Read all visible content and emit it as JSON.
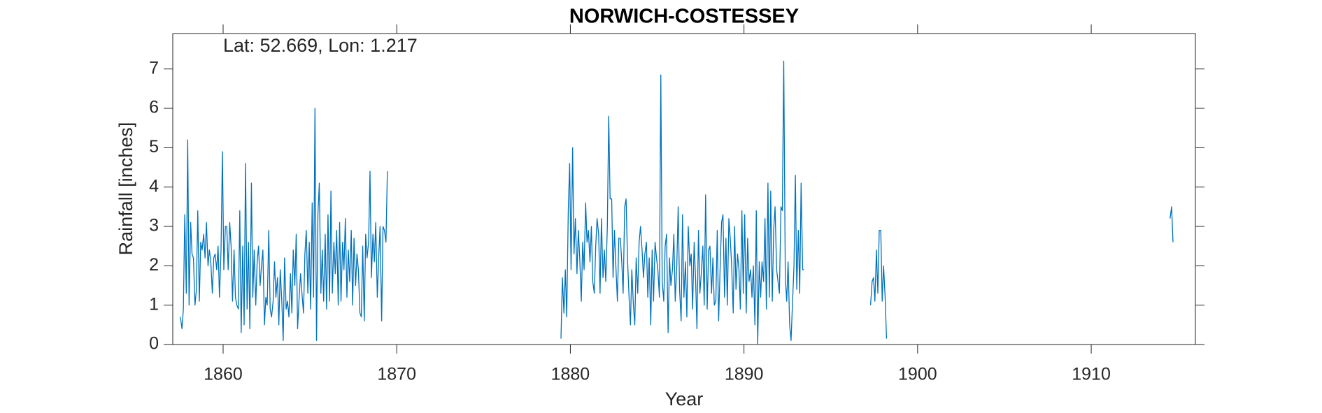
{
  "chart_data": {
    "type": "line",
    "title": "NORWICH-COSTESSEY",
    "annotation": "Lat: 52.669, Lon: 1.217",
    "x_label": "Year",
    "y_label": "Rainfall [inches]",
    "xlim": [
      1857.1,
      1916
    ],
    "xticks": [
      1860,
      1870,
      1880,
      1890,
      1900,
      1910
    ],
    "ylim": [
      0,
      7.9
    ],
    "yticks": [
      0,
      1,
      2,
      3,
      4,
      5,
      6,
      7
    ],
    "color": "#0072bd",
    "x": [
      1857.54,
      1857.63,
      1857.71,
      1857.79,
      1857.88,
      1857.96,
      1858.04,
      1858.13,
      1858.21,
      1858.29,
      1858.38,
      1858.46,
      1858.54,
      1858.63,
      1858.71,
      1858.79,
      1858.88,
      1858.96,
      1859.04,
      1859.13,
      1859.21,
      1859.29,
      1859.38,
      1859.46,
      1859.54,
      1859.63,
      1859.71,
      1859.79,
      1859.88,
      1859.96,
      1860.04,
      1860.13,
      1860.21,
      1860.29,
      1860.38,
      1860.46,
      1860.54,
      1860.63,
      1860.71,
      1860.79,
      1860.88,
      1860.96,
      1861.04,
      1861.13,
      1861.21,
      1861.29,
      1861.38,
      1861.46,
      1861.54,
      1861.63,
      1861.71,
      1861.79,
      1861.88,
      1861.96,
      1862.04,
      1862.13,
      1862.21,
      1862.29,
      1862.38,
      1862.46,
      1862.54,
      1862.63,
      1862.71,
      1862.79,
      1862.88,
      1862.96,
      1863.04,
      1863.13,
      1863.21,
      1863.29,
      1863.38,
      1863.46,
      1863.54,
      1863.63,
      1863.71,
      1863.79,
      1863.88,
      1863.96,
      1864.04,
      1864.13,
      1864.21,
      1864.29,
      1864.38,
      1864.46,
      1864.54,
      1864.63,
      1864.71,
      1864.79,
      1864.88,
      1864.96,
      1865.04,
      1865.13,
      1865.21,
      1865.29,
      1865.38,
      1865.46,
      1865.54,
      1865.63,
      1865.71,
      1865.79,
      1865.88,
      1865.96,
      1866.04,
      1866.13,
      1866.21,
      1866.29,
      1866.38,
      1866.46,
      1866.54,
      1866.63,
      1866.71,
      1866.79,
      1866.88,
      1866.96,
      1867.04,
      1867.13,
      1867.21,
      1867.29,
      1867.38,
      1867.46,
      1867.54,
      1867.63,
      1867.71,
      1867.79,
      1867.88,
      1867.96,
      1868.04,
      1868.13,
      1868.21,
      1868.29,
      1868.38,
      1868.46,
      1868.54,
      1868.63,
      1868.71,
      1868.79,
      1868.88,
      1868.96,
      1869.04,
      1869.13,
      1869.21,
      1869.29,
      1869.38,
      1869.46,
      null,
      1879.46,
      1879.54,
      1879.63,
      1879.71,
      1879.79,
      1879.88,
      1879.96,
      1880.04,
      1880.13,
      1880.21,
      1880.29,
      1880.38,
      1880.46,
      1880.54,
      1880.63,
      1880.71,
      1880.79,
      1880.88,
      1880.96,
      1881.04,
      1881.13,
      1881.21,
      1881.29,
      1881.38,
      1881.46,
      1881.54,
      1881.63,
      1881.71,
      1881.79,
      1881.88,
      1881.96,
      1882.04,
      1882.13,
      1882.21,
      1882.29,
      1882.38,
      1882.46,
      1882.54,
      1882.63,
      1882.71,
      1882.79,
      1882.88,
      1882.96,
      1883.04,
      1883.13,
      1883.21,
      1883.29,
      1883.38,
      1883.46,
      1883.54,
      1883.63,
      1883.71,
      1883.79,
      1883.88,
      1883.96,
      1884.04,
      1884.13,
      1884.21,
      1884.29,
      1884.38,
      1884.46,
      1884.54,
      1884.63,
      1884.71,
      1884.79,
      1884.88,
      1884.96,
      1885.04,
      1885.13,
      1885.21,
      1885.29,
      1885.38,
      1885.46,
      1885.54,
      1885.63,
      1885.71,
      1885.79,
      1885.88,
      1885.96,
      1886.04,
      1886.13,
      1886.21,
      1886.29,
      1886.38,
      1886.46,
      1886.54,
      1886.63,
      1886.71,
      1886.79,
      1886.88,
      1886.96,
      1887.04,
      1887.13,
      1887.21,
      1887.29,
      1887.38,
      1887.46,
      1887.54,
      1887.63,
      1887.71,
      1887.79,
      1887.88,
      1887.96,
      1888.04,
      1888.13,
      1888.21,
      1888.29,
      1888.38,
      1888.46,
      1888.54,
      1888.63,
      1888.71,
      1888.79,
      1888.88,
      1888.96,
      1889.04,
      1889.13,
      1889.21,
      1889.29,
      1889.38,
      1889.46,
      1889.54,
      1889.63,
      1889.71,
      1889.79,
      1889.88,
      1889.96,
      1890.04,
      1890.13,
      1890.21,
      1890.29,
      1890.38,
      1890.46,
      1890.54,
      1890.63,
      1890.71,
      1890.79,
      1890.88,
      1890.96,
      1891.04,
      1891.13,
      1891.21,
      1891.29,
      1891.38,
      1891.46,
      1891.54,
      1891.63,
      1891.71,
      1891.79,
      1891.88,
      1891.96,
      1892.04,
      1892.13,
      1892.21,
      1892.29,
      1892.38,
      1892.46,
      1892.54,
      1892.63,
      1892.71,
      1892.79,
      1892.88,
      1892.96,
      1893.04,
      1893.13,
      1893.21,
      1893.29,
      1893.38,
      1893.46,
      null,
      1897.29,
      1897.38,
      1897.46,
      1897.54,
      1897.63,
      1897.71,
      1897.79,
      1897.88,
      1897.96,
      1898.04,
      1898.13,
      1898.21,
      null,
      1914.54,
      1914.63,
      1914.71
    ],
    "values": [
      0.7,
      0.4,
      0.9,
      3.3,
      1.3,
      5.2,
      1.0,
      3.1,
      2.3,
      2.2,
      1.0,
      1.4,
      3.4,
      1.1,
      2.6,
      2.4,
      2.8,
      2.2,
      3.1,
      2.0,
      2.4,
      2.1,
      1.3,
      2.2,
      2.3,
      1.9,
      2.5,
      1.2,
      2.4,
      4.9,
      1.9,
      3.0,
      3.0,
      1.9,
      3.1,
      2.5,
      1.1,
      2.4,
      1.2,
      1.0,
      0.9,
      3.4,
      0.3,
      2.5,
      0.5,
      4.6,
      0.9,
      2.6,
      0.4,
      4.1,
      1.2,
      2.4,
      1.0,
      2.1,
      2.5,
      1.5,
      2.0,
      2.4,
      0.5,
      1.2,
      1.0,
      2.9,
      0.9,
      0.7,
      1.1,
      2.1,
      1.2,
      1.7,
      0.5,
      1.9,
      1.1,
      0.1,
      2.2,
      0.9,
      1.1,
      0.7,
      1.8,
      0.8,
      2.4,
      1.5,
      2.8,
      0.4,
      1.2,
      1.8,
      1.3,
      0.8,
      2.3,
      2.9,
      1.3,
      2.6,
      0.9,
      3.6,
      1.2,
      6.0,
      0.1,
      3.3,
      4.1,
      1.3,
      2.4,
      1.1,
      2.8,
      0.9,
      3.3,
      1.1,
      3.9,
      1.3,
      2.6,
      1.8,
      2.9,
      1.0,
      3.1,
      1.1,
      2.6,
      1.9,
      3.2,
      1.2,
      2.4,
      1.6,
      2.9,
      1.0,
      2.7,
      1.5,
      2.3,
      1.9,
      0.8,
      0.7,
      2.5,
      0.6,
      2.8,
      2.2,
      2.6,
      4.4,
      1.7,
      2.8,
      2.1,
      3.1,
      1.2,
      2.2,
      3.0,
      0.6,
      3.0,
      2.9,
      2.6,
      4.4,
      null,
      0.15,
      1.7,
      0.8,
      1.9,
      0.7,
      3.4,
      4.6,
      1.9,
      5.0,
      2.3,
      3.2,
      1.8,
      2.9,
      2.2,
      1.1,
      2.6,
      1.9,
      3.6,
      2.6,
      2.9,
      2.1,
      3.0,
      1.6,
      1.3,
      2.5,
      3.2,
      2.8,
      1.3,
      3.2,
      1.7,
      2.4,
      1.6,
      3.0,
      5.8,
      3.7,
      3.7,
      1.7,
      2.9,
      1.9,
      1.1,
      2.7,
      2.7,
      2.1,
      1.3,
      3.5,
      3.7,
      2.2,
      1.2,
      0.5,
      1.9,
      1.0,
      0.5,
      2.2,
      1.3,
      2.6,
      3.0,
      2.4,
      1.7,
      2.3,
      2.6,
      1.2,
      2.2,
      0.5,
      2.4,
      1.1,
      2.6,
      2.2,
      1.9,
      1.2,
      6.85,
      1.6,
      1.1,
      2.5,
      2.8,
      0.3,
      2.2,
      1.5,
      1.9,
      2.8,
      1.1,
      2.0,
      3.5,
      1.4,
      0.6,
      3.3,
      1.2,
      2.1,
      0.7,
      3.0,
      2.0,
      2.3,
      0.9,
      2.6,
      1.7,
      0.4,
      2.9,
      1.3,
      1.8,
      2.5,
      1.0,
      3.8,
      0.9,
      2.4,
      2.5,
      1.3,
      2.2,
      1.0,
      1.1,
      2.9,
      0.6,
      2.0,
      3.1,
      3.3,
      1.2,
      2.7,
      1.0,
      3.2,
      2.7,
      2.0,
      0.8,
      3.0,
      1.4,
      2.3,
      1.9,
      0.9,
      3.4,
      1.3,
      3.3,
      0.8,
      2.7,
      1.6,
      1.9,
      1.2,
      2.0,
      0.5,
      3.4,
      0.02,
      2.1,
      1.2,
      2.1,
      1.6,
      3.2,
      0.9,
      4.1,
      1.2,
      3.9,
      1.1,
      2.9,
      3.5,
      1.9,
      1.6,
      1.3,
      3.5,
      3.4,
      7.2,
      1.7,
      1.1,
      2.1,
      0.5,
      0.1,
      1.0,
      2.0,
      4.3,
      1.4,
      2.9,
      1.3,
      4.1,
      1.9,
      1.9,
      null,
      1.0,
      1.6,
      1.7,
      1.1,
      2.4,
      1.3,
      2.9,
      2.9,
      1.1,
      2.0,
      1.2,
      0.15,
      null,
      3.2,
      3.5,
      2.6
    ]
  }
}
